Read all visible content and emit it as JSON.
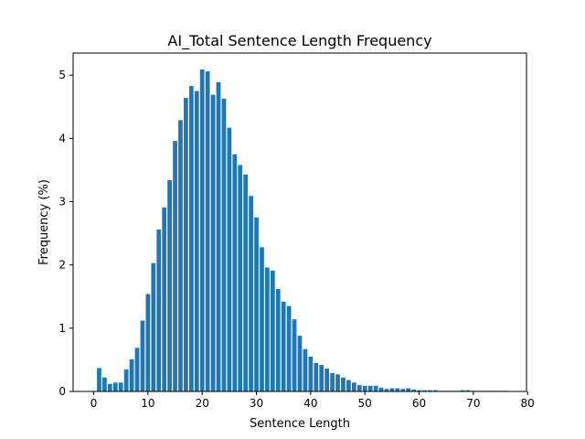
{
  "chart_data": {
    "type": "bar",
    "title": "AI_Total Sentence Length Frequency",
    "xlabel": "Sentence Length",
    "ylabel": "Frequency (%)",
    "xlim": [
      -3.8,
      79.8
    ],
    "ylim": [
      0,
      5.35
    ],
    "xticks": [
      0,
      10,
      20,
      30,
      40,
      50,
      60,
      70,
      80
    ],
    "yticks": [
      0,
      1,
      2,
      3,
      4,
      5
    ],
    "grid": false,
    "bar_color": "#1f77b4",
    "series": [
      {
        "x": [
          1,
          2,
          3,
          4,
          5,
          6,
          7,
          8,
          9,
          10,
          11,
          12,
          13,
          14,
          15,
          16,
          17,
          18,
          19,
          20,
          21,
          22,
          23,
          24,
          25,
          26,
          27,
          28,
          29,
          30,
          31,
          32,
          33,
          34,
          35,
          36,
          37,
          38,
          39,
          40,
          41,
          42,
          43,
          44,
          45,
          46,
          47,
          48,
          49,
          50,
          51,
          52,
          53,
          54,
          55,
          56,
          57,
          58,
          59,
          60,
          61,
          62,
          63,
          64,
          65,
          66,
          67,
          68,
          69,
          70,
          71,
          72,
          73,
          74,
          75,
          76
        ],
        "values": [
          0.37,
          0.22,
          0.12,
          0.14,
          0.14,
          0.35,
          0.51,
          0.69,
          1.12,
          1.54,
          2.03,
          2.56,
          2.91,
          3.34,
          3.96,
          4.29,
          4.64,
          4.83,
          4.75,
          5.09,
          5.06,
          4.69,
          4.89,
          4.63,
          4.17,
          3.75,
          3.58,
          3.43,
          3.09,
          2.75,
          2.28,
          1.96,
          1.91,
          1.62,
          1.42,
          1.35,
          1.14,
          0.88,
          0.67,
          0.55,
          0.45,
          0.42,
          0.36,
          0.29,
          0.27,
          0.22,
          0.18,
          0.14,
          0.1,
          0.09,
          0.09,
          0.09,
          0.06,
          0.04,
          0.05,
          0.05,
          0.04,
          0.05,
          0.03,
          0.02,
          0.02,
          0.02,
          0.02,
          0.01,
          0.01,
          0.01,
          0.01,
          0.02,
          0.02,
          0.01,
          0.01,
          0.01,
          0.01,
          0.01,
          0.01,
          0.01
        ]
      }
    ]
  }
}
